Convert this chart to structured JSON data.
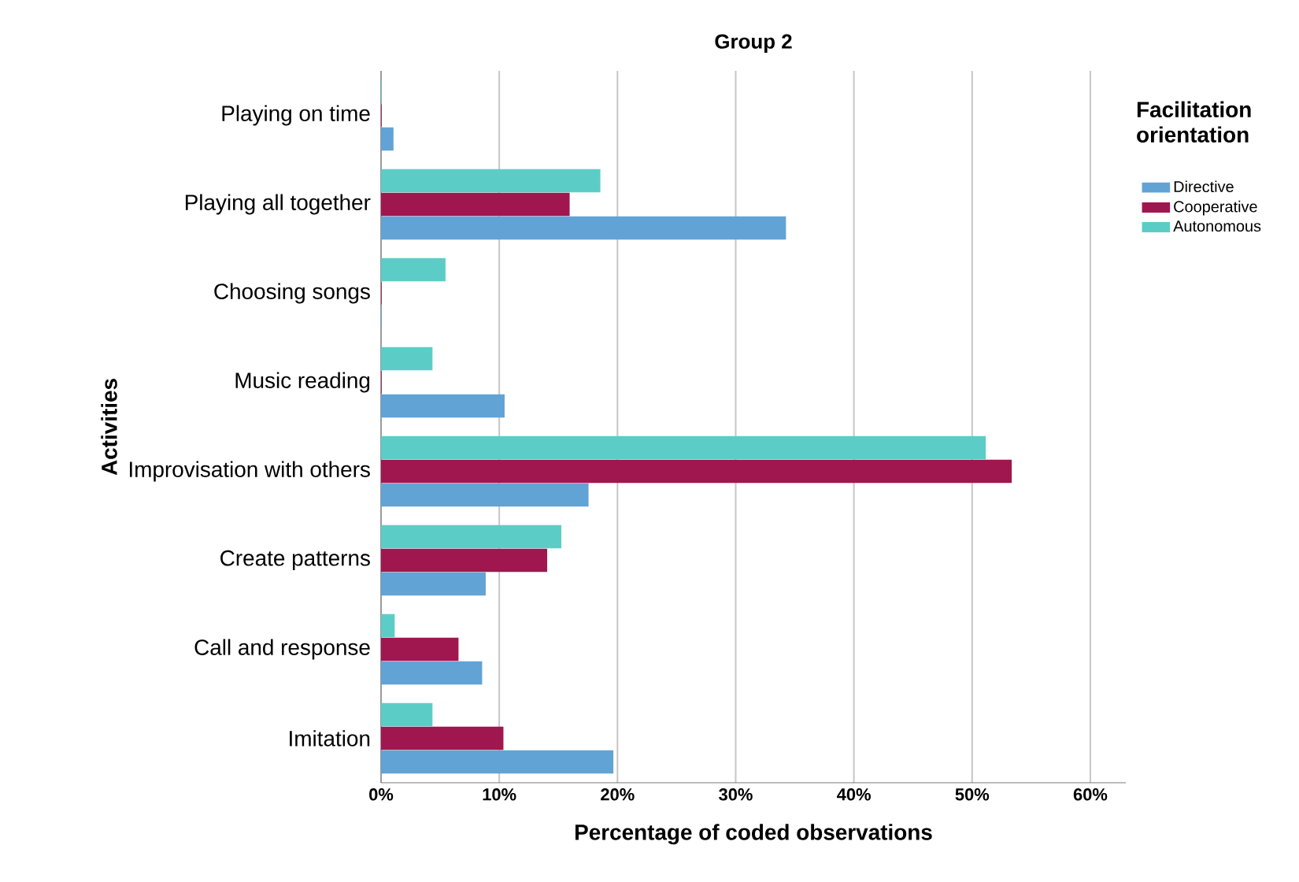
{
  "chart_data": {
    "type": "bar",
    "orientation": "horizontal",
    "title": "Group 2",
    "xlabel": "Percentage of coded observations",
    "ylabel": "Activities",
    "legend_title": "Facilitation orientation",
    "legend": "right",
    "grid": "x",
    "categories": [
      "Playing on time",
      "Playing all together",
      "Choosing songs",
      "Music reading",
      "Improvisation with others",
      "Create patterns",
      "Call and response",
      "Imitation"
    ],
    "series": [
      {
        "name": "Directive",
        "color": "#62a3d6",
        "values": [
          1.0,
          34.2,
          0,
          10.4,
          17.5,
          8.8,
          8.5,
          19.6
        ]
      },
      {
        "name": "Cooperative",
        "color": "#a0174f",
        "values": [
          0,
          15.9,
          0,
          0,
          53.3,
          14.0,
          6.5,
          10.3
        ]
      },
      {
        "name": "Autonomous",
        "color": "#5ccdc6",
        "values": [
          0,
          18.5,
          5.4,
          4.3,
          51.1,
          15.2,
          1.1,
          4.3
        ]
      }
    ],
    "xlim": [
      0,
      63
    ],
    "xticks": [
      {
        "value": 0,
        "label": "0%"
      },
      {
        "value": 10,
        "label": "10%"
      },
      {
        "value": 20,
        "label": "20%"
      },
      {
        "value": 30,
        "label": "30%"
      },
      {
        "value": 40,
        "label": "40%"
      },
      {
        "value": 50,
        "label": "50%"
      },
      {
        "value": 60,
        "label": "60%"
      }
    ]
  }
}
